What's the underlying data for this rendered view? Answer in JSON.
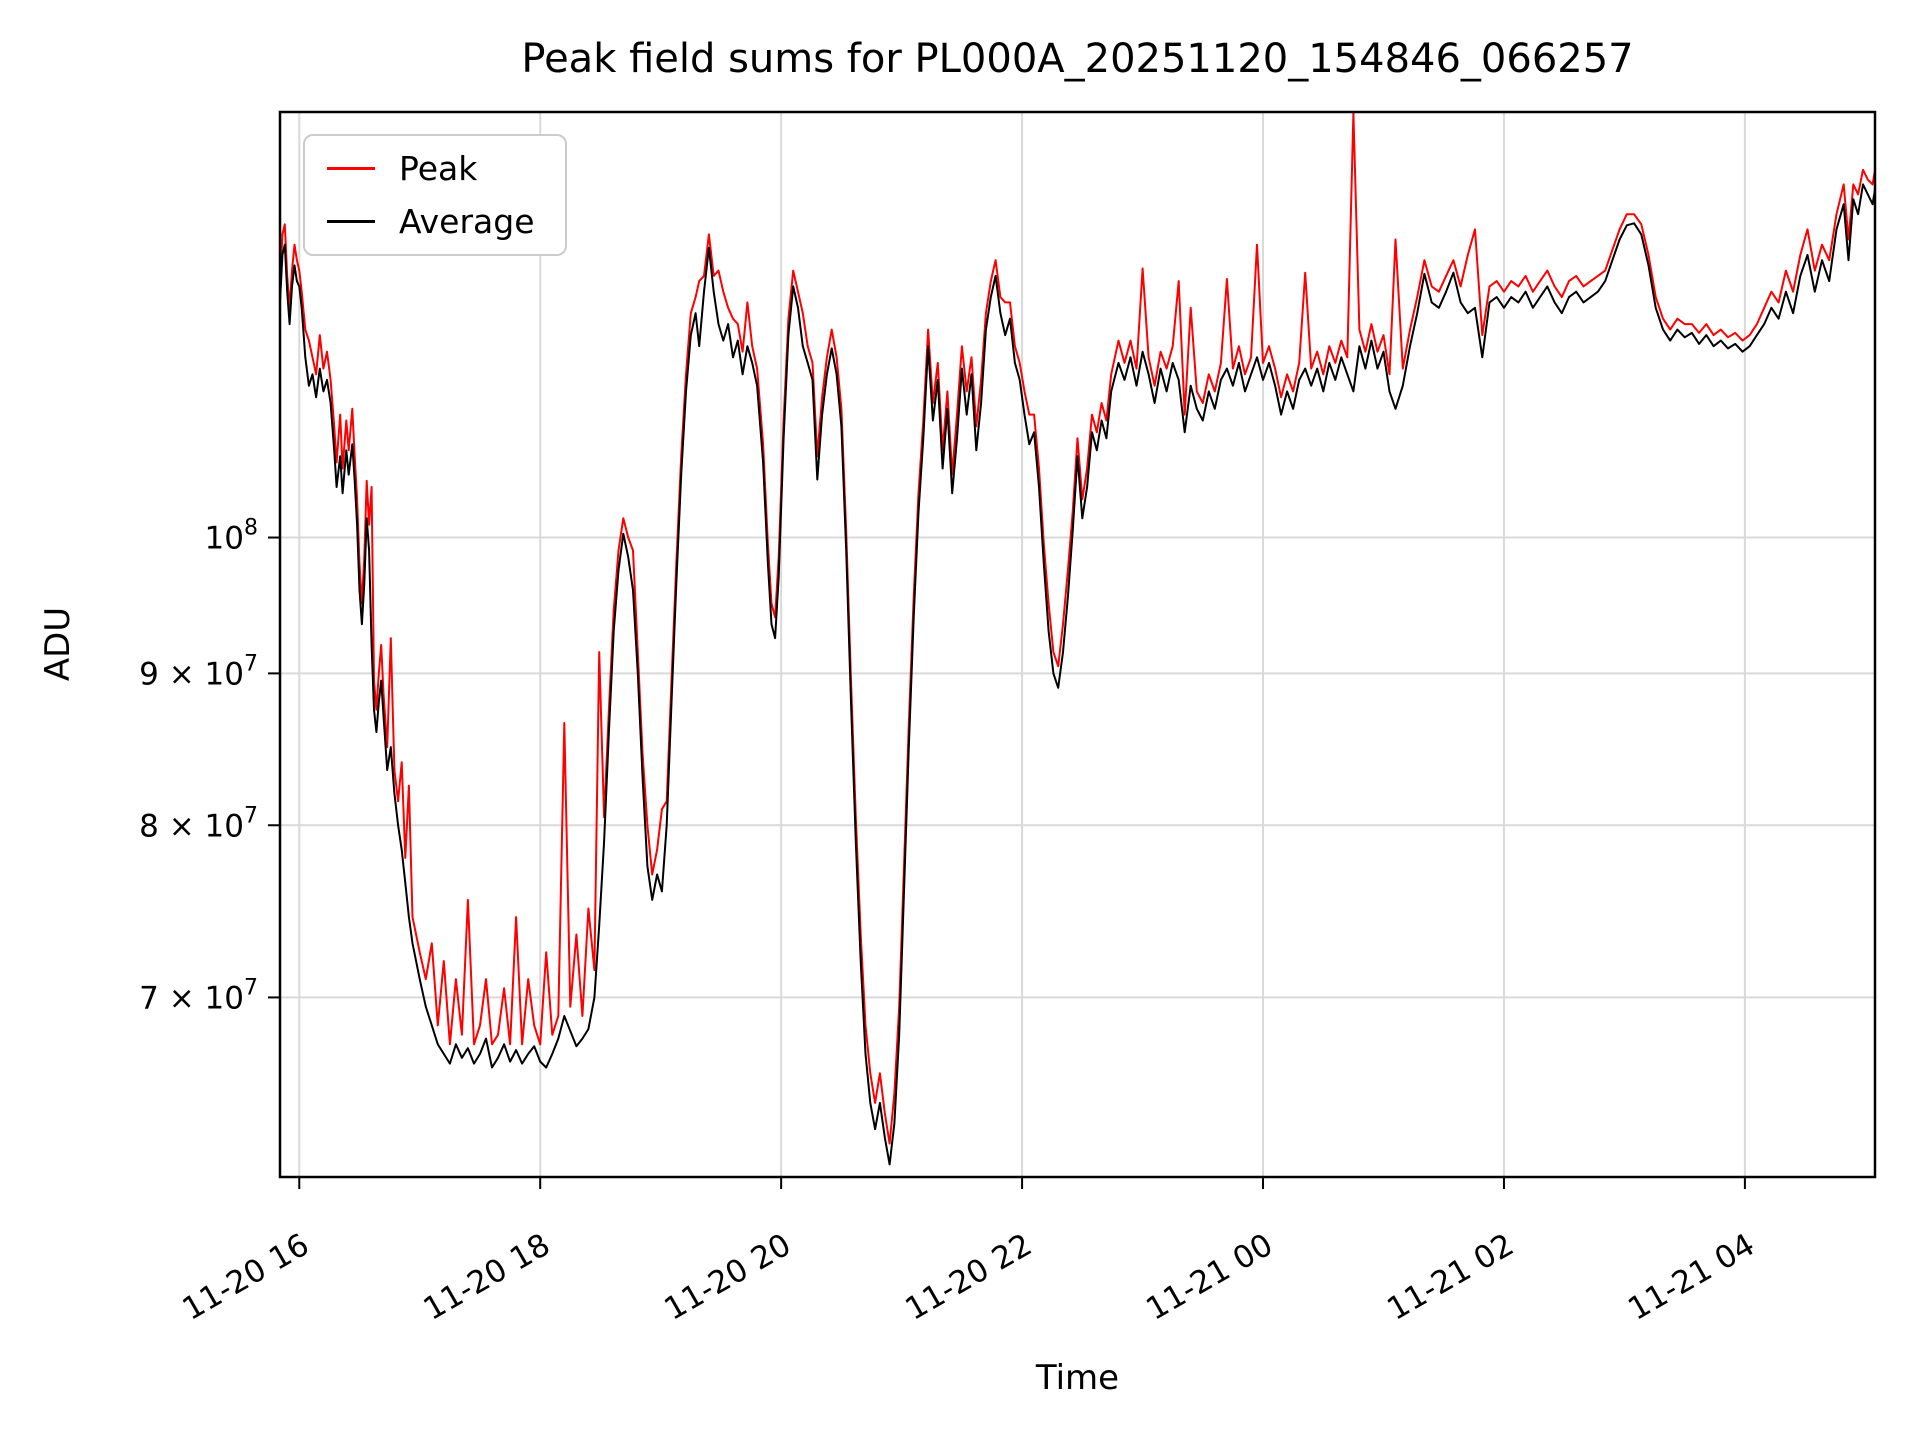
{
  "title": "Peak field sums for PL000A_20251120_154846_066257",
  "chart_data": {
    "type": "line",
    "xlabel": "Time",
    "ylabel": "ADU",
    "y_scale": "log",
    "grid": true,
    "legend_position": "upper-left",
    "x_unit": "hours since 2025-11-20 00:00",
    "x_range": [
      15.84,
      29.08
    ],
    "y_range_millions": [
      60.9,
      139.1
    ],
    "x_ticks": [
      {
        "t": 16,
        "label": "11-20 16"
      },
      {
        "t": 18,
        "label": "11-20 18"
      },
      {
        "t": 20,
        "label": "11-20 20"
      },
      {
        "t": 22,
        "label": "11-20 22"
      },
      {
        "t": 24,
        "label": "11-21 00"
      },
      {
        "t": 26,
        "label": "11-21 02"
      },
      {
        "t": 28,
        "label": "11-21 04"
      }
    ],
    "y_ticks": [
      {
        "v": 100,
        "base": "10",
        "exp": "8"
      },
      {
        "v": 90,
        "base": "9 × 10",
        "exp": "7"
      },
      {
        "v": 80,
        "base": "8 × 10",
        "exp": "7"
      },
      {
        "v": 70,
        "base": "7 × 10",
        "exp": "7"
      }
    ],
    "t": [
      15.84,
      15.86,
      15.88,
      15.9,
      15.92,
      15.94,
      15.96,
      15.98,
      16.0,
      16.02,
      16.05,
      16.08,
      16.11,
      16.14,
      16.17,
      16.2,
      16.23,
      16.26,
      16.29,
      16.31,
      16.34,
      16.36,
      16.39,
      16.41,
      16.44,
      16.46,
      16.48,
      16.5,
      16.52,
      16.54,
      16.56,
      16.58,
      16.6,
      16.62,
      16.64,
      16.66,
      16.68,
      16.7,
      16.73,
      16.76,
      16.79,
      16.82,
      16.85,
      16.88,
      16.91,
      16.94,
      16.97,
      17.0,
      17.05,
      17.1,
      17.15,
      17.2,
      17.25,
      17.3,
      17.35,
      17.4,
      17.45,
      17.5,
      17.55,
      17.6,
      17.65,
      17.7,
      17.75,
      17.8,
      17.85,
      17.9,
      17.95,
      18.0,
      18.05,
      18.1,
      18.15,
      18.2,
      18.25,
      18.3,
      18.35,
      18.4,
      18.45,
      18.49,
      18.53,
      18.57,
      18.61,
      18.65,
      18.69,
      18.73,
      18.77,
      18.81,
      18.85,
      18.89,
      18.93,
      18.97,
      19.01,
      19.05,
      19.09,
      19.13,
      19.17,
      19.21,
      19.25,
      19.29,
      19.32,
      19.36,
      19.4,
      19.44,
      19.48,
      19.52,
      19.56,
      19.6,
      19.64,
      19.68,
      19.72,
      19.76,
      19.8,
      19.85,
      19.89,
      19.92,
      19.95,
      19.98,
      20.02,
      20.06,
      20.1,
      20.14,
      20.18,
      20.22,
      20.26,
      20.3,
      20.34,
      20.38,
      20.42,
      20.46,
      20.5,
      20.54,
      20.58,
      20.62,
      20.66,
      20.7,
      20.74,
      20.78,
      20.82,
      20.86,
      20.9,
      20.94,
      20.98,
      21.02,
      21.06,
      21.1,
      21.14,
      21.18,
      21.22,
      21.26,
      21.3,
      21.34,
      21.38,
      21.42,
      21.46,
      21.5,
      21.54,
      21.58,
      21.62,
      21.66,
      21.7,
      21.74,
      21.78,
      21.82,
      21.86,
      21.9,
      21.94,
      21.98,
      22.02,
      22.06,
      22.1,
      22.14,
      22.18,
      22.22,
      22.26,
      22.3,
      22.34,
      22.38,
      22.42,
      22.46,
      22.5,
      22.54,
      22.58,
      22.62,
      22.66,
      22.7,
      22.74,
      22.8,
      22.85,
      22.9,
      22.95,
      23.0,
      23.05,
      23.1,
      23.15,
      23.2,
      23.25,
      23.3,
      23.35,
      23.4,
      23.45,
      23.5,
      23.55,
      23.6,
      23.65,
      23.7,
      23.75,
      23.8,
      23.85,
      23.9,
      23.95,
      24.0,
      24.05,
      24.1,
      24.15,
      24.2,
      24.25,
      24.3,
      24.35,
      24.4,
      24.45,
      24.5,
      24.55,
      24.6,
      24.65,
      24.7,
      24.75,
      24.8,
      24.85,
      24.9,
      24.95,
      25.0,
      25.05,
      25.1,
      25.16,
      25.22,
      25.28,
      25.34,
      25.4,
      25.46,
      25.52,
      25.58,
      25.64,
      25.7,
      25.76,
      25.82,
      25.88,
      25.94,
      26.0,
      26.06,
      26.12,
      26.18,
      26.24,
      26.3,
      26.36,
      26.42,
      26.48,
      26.54,
      26.6,
      26.66,
      26.72,
      26.78,
      26.84,
      26.9,
      26.96,
      27.02,
      27.08,
      27.14,
      27.2,
      27.26,
      27.32,
      27.38,
      27.44,
      27.5,
      27.56,
      27.62,
      27.68,
      27.74,
      27.8,
      27.86,
      27.92,
      27.98,
      28.04,
      28.1,
      28.16,
      28.22,
      28.28,
      28.34,
      28.4,
      28.46,
      28.52,
      28.58,
      28.64,
      28.7,
      28.76,
      28.82,
      28.86,
      28.9,
      28.94,
      28.98,
      29.02,
      29.06,
      29.08
    ],
    "series": [
      {
        "name": "Peak",
        "color": "#ff0000",
        "values_millions": [
          121.5,
          126.5,
          127.5,
          122.5,
          119.5,
          123.0,
          125.5,
          124.0,
          123.0,
          121.0,
          117.5,
          116.5,
          115.0,
          113.5,
          117.0,
          114.0,
          115.5,
          113.0,
          109.0,
          106.0,
          110.0,
          105.5,
          109.5,
          107.0,
          110.5,
          106.5,
          103.0,
          98.0,
          95.0,
          98.5,
          104.5,
          101.0,
          104.0,
          89.5,
          87.5,
          90.0,
          92.0,
          88.5,
          85.0,
          92.5,
          83.5,
          81.5,
          84.0,
          78.0,
          82.5,
          74.5,
          73.5,
          72.5,
          71.0,
          73.0,
          68.5,
          72.0,
          67.5,
          71.0,
          68.0,
          75.5,
          67.5,
          68.5,
          71.0,
          67.5,
          68.0,
          70.5,
          67.5,
          74.5,
          67.5,
          71.0,
          68.5,
          67.5,
          72.5,
          68.0,
          69.0,
          86.6,
          69.5,
          73.5,
          69.0,
          75.0,
          71.5,
          91.5,
          80.5,
          87.5,
          94.5,
          99.0,
          101.5,
          100.0,
          99.0,
          91.5,
          84.5,
          80.0,
          77.0,
          78.5,
          81.0,
          81.5,
          89.5,
          98.0,
          106.5,
          113.5,
          119.0,
          120.5,
          122.0,
          122.5,
          126.5,
          122.5,
          123.0,
          121.0,
          119.5,
          118.5,
          118.0,
          115.5,
          120.0,
          116.0,
          114.0,
          107.5,
          99.5,
          95.0,
          94.0,
          98.5,
          109.5,
          118.5,
          123.0,
          121.0,
          119.0,
          116.0,
          114.5,
          106.5,
          111.5,
          115.0,
          117.5,
          115.0,
          110.5,
          100.5,
          89.5,
          80.5,
          73.5,
          68.5,
          66.0,
          64.5,
          66.0,
          64.0,
          62.5,
          65.0,
          69.5,
          77.5,
          86.5,
          95.5,
          103.5,
          109.5,
          117.5,
          111.0,
          114.5,
          107.0,
          112.0,
          105.0,
          110.0,
          116.0,
          112.0,
          115.0,
          109.0,
          113.0,
          119.0,
          122.0,
          124.0,
          120.5,
          120.0,
          120.0,
          116.0,
          114.5,
          112.0,
          110.0,
          110.0,
          105.5,
          99.5,
          95.0,
          91.5,
          90.5,
          93.5,
          97.5,
          102.0,
          108.0,
          103.0,
          105.5,
          110.0,
          108.5,
          111.0,
          109.5,
          113.5,
          116.5,
          114.5,
          116.5,
          114.0,
          123.2,
          115.0,
          112.5,
          115.5,
          114.0,
          116.0,
          122.0,
          110.0,
          119.5,
          112.0,
          111.0,
          113.5,
          112.0,
          114.5,
          122.2,
          114.0,
          116.0,
          113.5,
          115.0,
          125.5,
          114.5,
          116.0,
          114.0,
          111.5,
          113.5,
          112.0,
          114.5,
          122.8,
          114.0,
          115.5,
          113.5,
          116.0,
          114.5,
          116.5,
          115.0,
          139.0,
          117.5,
          115.5,
          118.0,
          115.5,
          117.0,
          113.5,
          126.0,
          114.0,
          117.5,
          120.5,
          124.0,
          121.5,
          121.0,
          122.5,
          124.0,
          121.5,
          124.5,
          127.0,
          117.0,
          121.5,
          122.0,
          121.0,
          122.0,
          121.5,
          122.5,
          121.0,
          122.0,
          123.0,
          121.5,
          120.5,
          122.0,
          122.5,
          121.5,
          122.0,
          122.5,
          123.0,
          125.0,
          127.0,
          128.5,
          128.5,
          127.5,
          124.5,
          120.5,
          118.5,
          117.5,
          118.5,
          118.0,
          118.0,
          117.2,
          118.0,
          117.0,
          117.5,
          116.8,
          117.2,
          116.5,
          117.0,
          118.0,
          119.5,
          121.0,
          120.0,
          123.0,
          121.0,
          124.5,
          127.0,
          123.0,
          125.5,
          124.0,
          128.5,
          131.5,
          126.0,
          131.5,
          130.5,
          133.0,
          132.0,
          131.5,
          133.0
        ]
      },
      {
        "name": "Average",
        "color": "#000000",
        "values_millions": [
          120.0,
          124.5,
          125.5,
          121.0,
          118.0,
          121.5,
          123.5,
          122.0,
          121.5,
          119.5,
          115.0,
          112.5,
          113.5,
          111.5,
          114.0,
          112.0,
          113.0,
          111.0,
          107.0,
          104.0,
          106.5,
          103.5,
          107.0,
          105.0,
          107.5,
          104.5,
          101.0,
          96.0,
          93.5,
          96.5,
          101.5,
          99.0,
          92.0,
          87.5,
          86.0,
          88.0,
          89.5,
          87.0,
          83.5,
          85.0,
          82.0,
          80.0,
          78.5,
          76.5,
          74.5,
          73.0,
          72.0,
          71.0,
          69.5,
          68.5,
          67.5,
          67.0,
          66.5,
          67.5,
          66.8,
          67.3,
          66.5,
          67.0,
          67.8,
          66.3,
          66.8,
          67.5,
          66.6,
          67.2,
          66.5,
          67.0,
          67.4,
          66.6,
          66.3,
          67.0,
          67.8,
          69.0,
          68.2,
          67.4,
          67.8,
          68.3,
          70.0,
          74.0,
          79.0,
          86.0,
          93.0,
          97.5,
          100.3,
          98.5,
          96.0,
          90.0,
          83.0,
          77.5,
          75.5,
          77.0,
          76.0,
          80.0,
          88.0,
          96.5,
          105.0,
          112.0,
          117.0,
          119.0,
          116.0,
          121.0,
          125.2,
          121.0,
          118.0,
          116.5,
          118.0,
          115.0,
          116.5,
          113.5,
          116.0,
          114.5,
          112.5,
          106.0,
          98.0,
          93.5,
          92.5,
          97.0,
          108.0,
          117.0,
          121.5,
          119.5,
          116.0,
          114.5,
          113.0,
          104.6,
          110.0,
          113.5,
          115.8,
          113.5,
          109.0,
          99.0,
          88.0,
          79.0,
          72.0,
          67.0,
          64.5,
          63.2,
          64.5,
          62.8,
          61.5,
          63.5,
          68.0,
          76.0,
          85.0,
          94.0,
          102.0,
          108.0,
          116.0,
          109.5,
          113.0,
          105.5,
          110.5,
          103.5,
          108.0,
          114.0,
          110.0,
          113.5,
          107.0,
          111.0,
          117.5,
          120.5,
          122.5,
          119.0,
          117.0,
          118.5,
          114.5,
          113.0,
          110.0,
          107.5,
          108.5,
          104.0,
          98.0,
          93.0,
          90.0,
          89.0,
          91.5,
          95.5,
          100.5,
          106.5,
          101.5,
          104.0,
          108.5,
          107.0,
          109.5,
          108.0,
          112.0,
          114.5,
          113.0,
          115.0,
          112.5,
          115.5,
          113.5,
          111.0,
          114.0,
          112.0,
          114.5,
          113.0,
          108.5,
          112.5,
          110.5,
          109.5,
          112.0,
          110.5,
          113.0,
          114.0,
          112.5,
          114.5,
          112.0,
          113.5,
          115.0,
          113.0,
          114.5,
          112.5,
          110.0,
          112.0,
          110.5,
          113.0,
          114.0,
          112.5,
          114.0,
          112.0,
          114.5,
          113.0,
          115.0,
          113.5,
          112.0,
          116.0,
          114.0,
          116.5,
          114.0,
          115.5,
          112.0,
          110.5,
          112.5,
          116.0,
          119.0,
          122.7,
          120.0,
          119.5,
          121.0,
          122.8,
          120.0,
          119.0,
          119.5,
          115.0,
          120.0,
          120.5,
          119.5,
          120.5,
          120.0,
          121.0,
          119.5,
          120.5,
          121.5,
          120.0,
          119.0,
          120.5,
          121.0,
          120.0,
          120.5,
          121.0,
          122.0,
          124.0,
          126.0,
          127.4,
          127.6,
          126.5,
          123.5,
          119.5,
          117.5,
          116.5,
          117.5,
          116.8,
          117.2,
          116.2,
          117.0,
          116.0,
          116.5,
          115.8,
          116.2,
          115.5,
          116.0,
          117.0,
          118.0,
          119.5,
          118.5,
          121.0,
          119.0,
          122.5,
          124.5,
          121.0,
          124.0,
          122.0,
          127.0,
          129.5,
          124.0,
          130.0,
          128.5,
          131.5,
          130.5,
          129.5,
          131.0
        ]
      }
    ],
    "style": {
      "grid_color": "#d9d9d9",
      "spine_color": "#000000",
      "background": "#ffffff",
      "line_width": 2
    }
  }
}
